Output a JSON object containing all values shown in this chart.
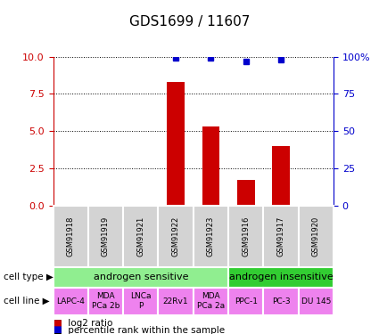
{
  "title": "GDS1699 / 11607",
  "samples": [
    "GSM91918",
    "GSM91919",
    "GSM91921",
    "GSM91922",
    "GSM91923",
    "GSM91916",
    "GSM91917",
    "GSM91920"
  ],
  "log2_ratio": [
    0,
    0,
    0,
    8.3,
    5.3,
    1.7,
    4.0,
    0
  ],
  "percentile_rank": [
    0,
    0,
    0,
    99,
    99,
    97,
    98,
    0
  ],
  "pct_threshold": 95,
  "cell_types": [
    {
      "label": "androgen sensitive",
      "start": 0,
      "end": 5,
      "color": "#90ee90"
    },
    {
      "label": "androgen insensitive",
      "start": 5,
      "end": 8,
      "color": "#32cd32"
    }
  ],
  "cell_lines": [
    {
      "label": "LAPC-4",
      "start": 0,
      "end": 1
    },
    {
      "label": "MDA\nPCa 2b",
      "start": 1,
      "end": 2
    },
    {
      "label": "LNCa\nP",
      "start": 2,
      "end": 3
    },
    {
      "label": "22Rv1",
      "start": 3,
      "end": 4
    },
    {
      "label": "MDA\nPCa 2a",
      "start": 4,
      "end": 5
    },
    {
      "label": "PPC-1",
      "start": 5,
      "end": 6
    },
    {
      "label": "PC-3",
      "start": 6,
      "end": 7
    },
    {
      "label": "DU 145",
      "start": 7,
      "end": 8
    }
  ],
  "cell_line_color": "#ee82ee",
  "sample_box_color": "#d3d3d3",
  "ylim_left": [
    0,
    10
  ],
  "ylim_right": [
    0,
    100
  ],
  "yticks_left": [
    0,
    2.5,
    5,
    7.5,
    10
  ],
  "yticks_right": [
    0,
    25,
    50,
    75,
    100
  ],
  "bar_color": "#cc0000",
  "dot_color": "#0000cc",
  "left_axis_color": "#cc0000",
  "right_axis_color": "#0000cc",
  "legend_red_label": "log2 ratio",
  "legend_blue_label": "percentile rank within the sample",
  "cell_type_label": "cell type",
  "cell_line_label": "cell line",
  "title_fontsize": 11,
  "tick_fontsize": 8,
  "bar_width": 0.5
}
